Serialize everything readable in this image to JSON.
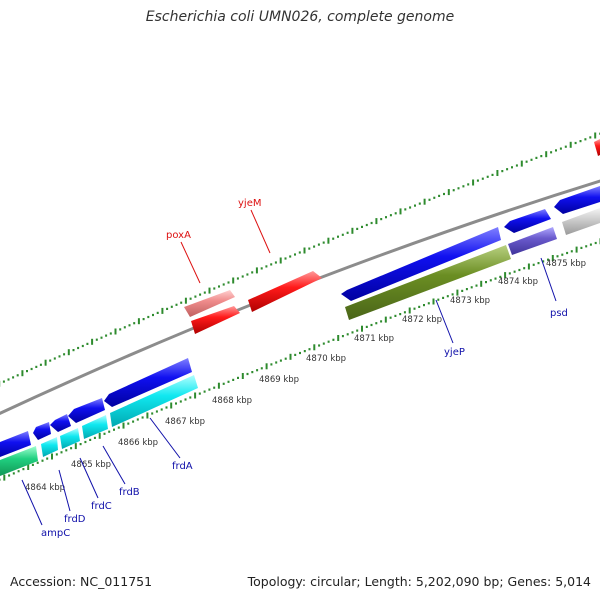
{
  "title": "Escherichia coli UMN026, complete genome",
  "footer": {
    "accession": "Accession: NC_011751",
    "summary": "Topology: circular; Length: 5,202,090 bp; Genes: 5,014"
  },
  "colors": {
    "backbone": "#8c8c8c",
    "ruler_tick": "#2e8b2e",
    "label_forward": "#dd1111",
    "label_reverse": "#1111aa"
  },
  "scale_labels": [
    "4864 kbp",
    "4865 kbp",
    "4866 kbp",
    "4867 kbp",
    "4868 kbp",
    "4869 kbp",
    "4870 kbp",
    "4871 kbp",
    "4872 kbp",
    "4873 kbp",
    "4874 kbp",
    "4875 kbp"
  ],
  "gene_labels": [
    {
      "name": "poxA",
      "strand": "forward"
    },
    {
      "name": "yjeM",
      "strand": "forward"
    },
    {
      "name": "ampC",
      "strand": "reverse"
    },
    {
      "name": "frdD",
      "strand": "reverse"
    },
    {
      "name": "frdC",
      "strand": "reverse"
    },
    {
      "name": "frdB",
      "strand": "reverse"
    },
    {
      "name": "frdA",
      "strand": "reverse"
    },
    {
      "name": "yjeP",
      "strand": "reverse"
    },
    {
      "name": "psd",
      "strand": "reverse"
    }
  ]
}
